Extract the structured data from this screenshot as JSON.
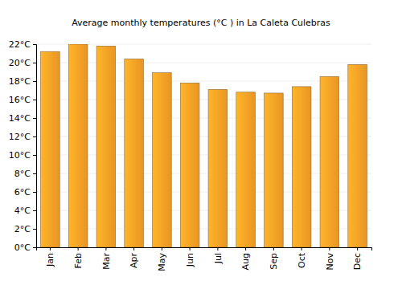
{
  "chart_data": {
    "type": "bar",
    "title": "Average monthly temperatures (°C ) in La Caleta Culebras",
    "categories": [
      "Jan",
      "Feb",
      "Mar",
      "Apr",
      "May",
      "Jun",
      "Jul",
      "Aug",
      "Sep",
      "Oct",
      "Nov",
      "Dec"
    ],
    "values": [
      21.2,
      22.0,
      21.8,
      20.4,
      18.9,
      17.8,
      17.1,
      16.8,
      16.7,
      17.4,
      18.5,
      19.8
    ],
    "color": "#ffa326",
    "ylim": [
      0,
      22
    ],
    "yticks": [
      {
        "value": 0,
        "label": "0°C"
      },
      {
        "value": 2,
        "label": "2°C"
      },
      {
        "value": 4,
        "label": "4°C"
      },
      {
        "value": 6,
        "label": "6°C"
      },
      {
        "value": 8,
        "label": "8°C"
      },
      {
        "value": 10,
        "label": "10°C"
      },
      {
        "value": 12,
        "label": "12°C"
      },
      {
        "value": 14,
        "label": "14°C"
      },
      {
        "value": 16,
        "label": "16°C"
      },
      {
        "value": 18,
        "label": "18°C"
      },
      {
        "value": 20,
        "label": "20°C"
      },
      {
        "value": 22,
        "label": "22°C"
      }
    ],
    "grid": true
  }
}
